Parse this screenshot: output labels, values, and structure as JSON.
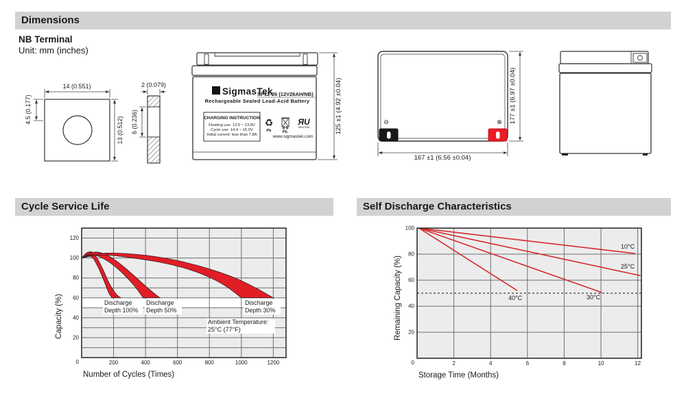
{
  "sections": {
    "dimensions": {
      "title": "Dimensions"
    },
    "cycle": {
      "title": "Cycle Service Life"
    },
    "self_discharge": {
      "title": "Self Discharge Characteristics"
    }
  },
  "terminal": {
    "heading": "NB Terminal",
    "unit_note": "Unit: mm (inches)",
    "front": {
      "width_dim": "14 (0.551)",
      "offset_dim": "4.5 (0.177)",
      "height_dim": "13 (0.512)"
    },
    "side": {
      "thickness_dim": "2 (0.079)",
      "slot_dim": "6 (0.236)"
    }
  },
  "battery_front": {
    "logo_glyph": "Σ",
    "brand": "SigmasTek",
    "model": "SP12-26 (12V26AH/NB)",
    "subtitle": "Rechargeable Sealed Lead-Acid Battery",
    "charging_box": {
      "title": "CHARGING INSTRUCTION",
      "line1": "Floating use: 13.5 ~ 13.8V",
      "line2": "Cycle use: 14.4 ~ 15.0V",
      "line3": "Initial current: less than 7.8A"
    },
    "recycle_glyph": "♻",
    "pb_recycle": "Pb",
    "pb_bin": "Pb.",
    "ul_mark": "ЯU",
    "ul_code": "MH47636",
    "website": "www.sigmastek.com",
    "height_dim": "125 ±1 (4.92 ±0.04)"
  },
  "battery_top": {
    "neg_symbol": "⊖",
    "pos_symbol": "⊕",
    "width_dim": "167 ±1 (6.56 ±0.04)",
    "depth_dim": "177 ±1 (6.97 ±0.04)"
  },
  "chart_data": [
    {
      "type": "area",
      "title": "Cycle Service Life",
      "xlabel": "Number of Cycles (Times)",
      "ylabel": "Capacity (%)",
      "xlim": [
        0,
        1280
      ],
      "ylim": [
        0,
        130
      ],
      "x_ticks": [
        200,
        400,
        600,
        800,
        1000,
        1200
      ],
      "y_ticks": [
        20,
        40,
        60,
        80,
        100,
        120
      ],
      "origin_label": "0",
      "grid_x": [
        200,
        400,
        600,
        800,
        1000,
        1200
      ],
      "grid_y": [
        10,
        20,
        30,
        40,
        50,
        60,
        70,
        80,
        100,
        120
      ],
      "white_bands": [
        [
          50,
          60
        ]
      ],
      "plot_bg": "#ececec",
      "grid_color": "#6e6e6e",
      "band_fill": "#e11d26",
      "bands": [
        {
          "label": "Discharge Depth 100%",
          "upper": [
            [
              0,
              100
            ],
            [
              30,
              105
            ],
            [
              65,
              106
            ],
            [
              100,
              99
            ],
            [
              135,
              88
            ],
            [
              175,
              74
            ],
            [
              215,
              64
            ],
            [
              245,
              60
            ]
          ],
          "lower": [
            [
              0,
              100
            ],
            [
              35,
              102
            ],
            [
              70,
              100
            ],
            [
              105,
              90
            ],
            [
              140,
              77
            ],
            [
              170,
              65
            ],
            [
              190,
              60
            ]
          ]
        },
        {
          "label": "Discharge Depth 50%",
          "upper": [
            [
              0,
              100
            ],
            [
              45,
              104
            ],
            [
              95,
              106
            ],
            [
              170,
              102
            ],
            [
              250,
              93
            ],
            [
              330,
              82
            ],
            [
              420,
              69
            ],
            [
              490,
              60
            ]
          ],
          "lower": [
            [
              0,
              100
            ],
            [
              45,
              103
            ],
            [
              100,
              102
            ],
            [
              180,
              95
            ],
            [
              260,
              84
            ],
            [
              330,
              72
            ],
            [
              385,
              60
            ]
          ]
        },
        {
          "label": "Discharge Depth 30%",
          "upper": [
            [
              0,
              100
            ],
            [
              70,
              103
            ],
            [
              160,
              105
            ],
            [
              320,
              104
            ],
            [
              480,
              101
            ],
            [
              640,
              96
            ],
            [
              800,
              89
            ],
            [
              960,
              80
            ],
            [
              1090,
              70
            ],
            [
              1200,
              60
            ]
          ],
          "lower": [
            [
              0,
              100
            ],
            [
              70,
              102
            ],
            [
              160,
              103
            ],
            [
              320,
              100
            ],
            [
              480,
              96
            ],
            [
              640,
              90
            ],
            [
              780,
              82
            ],
            [
              900,
              72
            ],
            [
              1000,
              60
            ]
          ]
        }
      ],
      "annotation": {
        "line1": "Ambient Temperature:",
        "line2": "25°C (77°F)"
      }
    },
    {
      "type": "line",
      "title": "Self Discharge Characteristics",
      "xlabel": "Storage Time (Months)",
      "ylabel": "Remaining Capacity (%)",
      "xlim": [
        0,
        12.2
      ],
      "ylim": [
        0,
        100
      ],
      "x_ticks": [
        2,
        4,
        6,
        8,
        10,
        12
      ],
      "y_ticks": [
        20,
        40,
        60,
        80,
        100
      ],
      "origin_label": "0",
      "grid_x": [
        2,
        4,
        6,
        8,
        10,
        12
      ],
      "grid_y": [
        20,
        40,
        60,
        80
      ],
      "dashed_y": 50,
      "plot_bg": "#ececec",
      "grid_color": "#6e6e6e",
      "line_color": "#d42a30",
      "series": [
        {
          "name": "10°C",
          "points": [
            [
              0.1,
              100
            ],
            [
              11.85,
              80.5
            ]
          ]
        },
        {
          "name": "25°C",
          "points": [
            [
              0.1,
              100
            ],
            [
              12.15,
              63.5
            ]
          ]
        },
        {
          "name": "30°C",
          "points": [
            [
              0.1,
              100
            ],
            [
              10.05,
              50.5
            ]
          ]
        },
        {
          "name": "40°C",
          "points": [
            [
              0.1,
              100
            ],
            [
              5.45,
              52
            ]
          ]
        }
      ]
    }
  ]
}
